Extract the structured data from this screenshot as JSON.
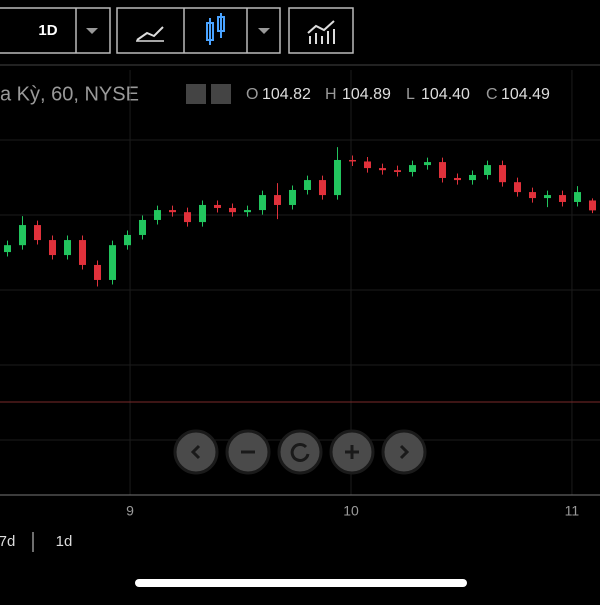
{
  "toolbar": {
    "interval": "1D"
  },
  "header": {
    "symbol": "a Kỳ, 60, NYSE",
    "o_label": "O",
    "o_value": "104.82",
    "h_label": "H",
    "h_value": "104.89",
    "l_label": "L",
    "l_value": "104.40",
    "c_label": "C",
    "c_value": "104.49"
  },
  "chart_data": {
    "type": "candlestick",
    "up_color": "#22c55e",
    "down_color": "#e0313b",
    "open": [
      103.1,
      103.33,
      104.0,
      103.5,
      103.0,
      103.5,
      102.67,
      102.17,
      103.33,
      103.67,
      104.17,
      104.5,
      104.43,
      104.1,
      104.67,
      104.57,
      104.43,
      104.5,
      105.0,
      104.67,
      105.17,
      105.5,
      105.0,
      106.17,
      106.12,
      105.9,
      105.83,
      105.77,
      106.0,
      106.1,
      105.57,
      105.5,
      105.67,
      106.0,
      105.43,
      105.1,
      104.9,
      105.0,
      104.77,
      104.82
    ],
    "high": [
      103.48,
      104.3,
      104.15,
      103.65,
      103.65,
      103.65,
      102.82,
      103.48,
      103.82,
      104.32,
      104.65,
      104.65,
      104.58,
      104.82,
      104.82,
      104.72,
      104.65,
      105.15,
      105.4,
      105.32,
      105.65,
      105.65,
      106.6,
      106.32,
      106.27,
      106.05,
      105.98,
      106.15,
      106.25,
      106.25,
      105.72,
      105.82,
      106.15,
      106.15,
      105.58,
      105.25,
      105.15,
      105.15,
      105.3,
      104.89
    ],
    "low": [
      102.95,
      103.18,
      103.35,
      102.85,
      102.85,
      102.52,
      101.95,
      102.02,
      103.18,
      103.52,
      104.02,
      104.28,
      103.95,
      103.95,
      104.42,
      104.28,
      104.28,
      104.35,
      104.2,
      104.52,
      105.02,
      104.85,
      104.85,
      105.97,
      105.75,
      105.68,
      105.62,
      105.62,
      105.85,
      105.42,
      105.35,
      105.35,
      105.52,
      105.28,
      104.95,
      104.75,
      104.6,
      104.62,
      104.62,
      104.4
    ],
    "close": [
      103.33,
      104.0,
      103.5,
      103.0,
      103.5,
      102.67,
      102.17,
      103.33,
      103.67,
      104.17,
      104.5,
      104.43,
      104.1,
      104.67,
      104.57,
      104.43,
      104.5,
      105.0,
      104.67,
      105.17,
      105.5,
      105.0,
      106.17,
      106.12,
      105.9,
      105.83,
      105.77,
      106.0,
      106.1,
      105.57,
      105.5,
      105.67,
      106.0,
      105.43,
      105.1,
      104.9,
      105.0,
      104.77,
      105.1,
      104.49
    ],
    "price_line": 98.1,
    "price_line_color": "#7a2a2a",
    "xlim": [
      -0.5,
      39.5
    ],
    "ylim": [
      95.0,
      109.17
    ],
    "xticks": [
      {
        "value": 8.17,
        "label": "9"
      },
      {
        "value": 22.9,
        "label": "10"
      },
      {
        "value": 37.63,
        "label": "11"
      }
    ],
    "grid": true
  },
  "ranges": [
    "7d",
    "1d"
  ]
}
